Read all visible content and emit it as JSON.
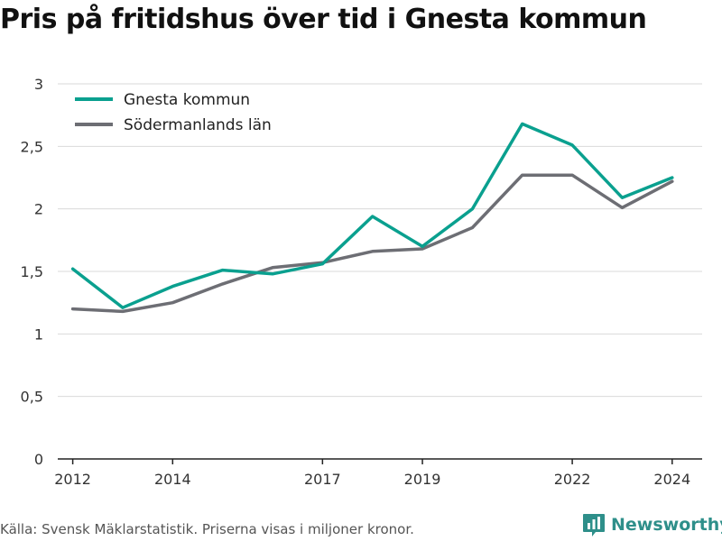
{
  "chart_title": "Pris på fritidshus över tid i Gnesta kommun",
  "source_note": "Källa: Svensk Mäklarstatistik. Priserna visas i miljoner kronor.",
  "brand": {
    "name": "Newsworthy",
    "icon": "newsworthy-logo-icon",
    "color": "#2e8f8a"
  },
  "chart_data": {
    "type": "line",
    "title": "Pris på fritidshus över tid i Gnesta kommun",
    "xlabel": "",
    "ylabel": "",
    "x": [
      2012,
      2013,
      2014,
      2015,
      2016,
      2017,
      2018,
      2019,
      2020,
      2021,
      2022,
      2023,
      2024
    ],
    "xlim": [
      2011.7,
      2024.6
    ],
    "ylim": [
      0,
      3
    ],
    "x_ticks": [
      2012,
      2014,
      2017,
      2019,
      2022,
      2024
    ],
    "y_ticks": [
      0,
      0.5,
      1,
      1.5,
      2,
      2.5,
      3
    ],
    "y_tick_labels": [
      "0",
      "0,5",
      "1",
      "1,5",
      "2",
      "2,5",
      "3"
    ],
    "grid": true,
    "legend_position": "top-left",
    "series": [
      {
        "name": "Gnesta kommun",
        "color": "#0aa08f",
        "values": [
          1.52,
          1.21,
          1.38,
          1.51,
          1.48,
          1.56,
          1.94,
          1.7,
          2.0,
          2.68,
          2.51,
          2.09,
          2.25
        ]
      },
      {
        "name": "Södermanlands län",
        "color": "#6d6e74",
        "values": [
          1.2,
          1.18,
          1.25,
          1.4,
          1.53,
          1.57,
          1.66,
          1.68,
          1.85,
          2.27,
          2.27,
          2.01,
          2.22
        ]
      }
    ]
  }
}
